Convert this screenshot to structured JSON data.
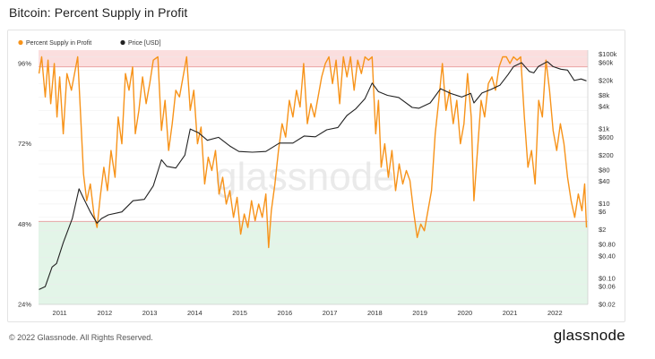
{
  "title": "Bitcoin: Percent Supply in Profit",
  "footer": {
    "copyright": "© 2022 Glassnode. All Rights Reserved.",
    "brand": "glassnode"
  },
  "watermark": "glassnode",
  "colors": {
    "profit_series": "#f7931a",
    "price_series": "#222222",
    "upper_band": "#fbdede",
    "lower_band": "#e3f5e8",
    "band_line": "#e89a9a"
  },
  "chart_data": {
    "type": "line",
    "title": "Bitcoin: Percent Supply in Profit",
    "legend_position": "top-left",
    "grid": true,
    "x_ticks": [
      "2011",
      "2012",
      "2013",
      "2014",
      "2015",
      "2016",
      "2017",
      "2018",
      "2019",
      "2020",
      "2021",
      "2022"
    ],
    "x_range": [
      2010.55,
      2022.75
    ],
    "y_left": {
      "ticks": [
        "96%",
        "72%",
        "48%",
        "24%"
      ],
      "range_percent": [
        24,
        100
      ],
      "scale": "linear"
    },
    "y_right": {
      "ticks": [
        "$100k",
        "$60k",
        "$20k",
        "$8k",
        "$4k",
        "$1k",
        "$600",
        "$200",
        "$80",
        "$40",
        "$10",
        "$6",
        "$2",
        "$0.80",
        "$0.40",
        "$0.10",
        "$0.06",
        "$0.02"
      ],
      "range_usd": [
        0.02,
        130000
      ],
      "scale": "log"
    },
    "bands": [
      {
        "from_percent": 95,
        "to_percent": 100,
        "color": "#fbdede"
      },
      {
        "from_percent": 24,
        "to_percent": 48.8,
        "color": "#e3f5e8"
      }
    ],
    "series": [
      {
        "name": "Percent Supply in Profit",
        "axis": "left",
        "unit": "%",
        "points": [
          [
            2010.56,
            93
          ],
          [
            2010.62,
            98
          ],
          [
            2010.7,
            86
          ],
          [
            2010.76,
            97
          ],
          [
            2010.82,
            84
          ],
          [
            2010.9,
            96
          ],
          [
            2010.96,
            80
          ],
          [
            2011.02,
            92
          ],
          [
            2011.1,
            75
          ],
          [
            2011.18,
            93
          ],
          [
            2011.28,
            88
          ],
          [
            2011.42,
            98
          ],
          [
            2011.48,
            82
          ],
          [
            2011.55,
            63
          ],
          [
            2011.62,
            55
          ],
          [
            2011.7,
            60
          ],
          [
            2011.78,
            51
          ],
          [
            2011.85,
            47
          ],
          [
            2011.92,
            56
          ],
          [
            2012.0,
            65
          ],
          [
            2012.08,
            58
          ],
          [
            2012.16,
            70
          ],
          [
            2012.25,
            62
          ],
          [
            2012.32,
            80
          ],
          [
            2012.4,
            72
          ],
          [
            2012.48,
            93
          ],
          [
            2012.56,
            88
          ],
          [
            2012.64,
            95
          ],
          [
            2012.7,
            75
          ],
          [
            2012.78,
            82
          ],
          [
            2012.86,
            92
          ],
          [
            2012.94,
            84
          ],
          [
            2013.02,
            90
          ],
          [
            2013.1,
            97
          ],
          [
            2013.2,
            98
          ],
          [
            2013.28,
            76
          ],
          [
            2013.36,
            85
          ],
          [
            2013.44,
            70
          ],
          [
            2013.52,
            78
          ],
          [
            2013.6,
            88
          ],
          [
            2013.68,
            86
          ],
          [
            2013.76,
            92
          ],
          [
            2013.84,
            98
          ],
          [
            2013.92,
            82
          ],
          [
            2014.0,
            88
          ],
          [
            2014.08,
            72
          ],
          [
            2014.16,
            77
          ],
          [
            2014.24,
            60
          ],
          [
            2014.32,
            68
          ],
          [
            2014.4,
            64
          ],
          [
            2014.48,
            70
          ],
          [
            2014.56,
            57
          ],
          [
            2014.64,
            62
          ],
          [
            2014.72,
            54
          ],
          [
            2014.8,
            58
          ],
          [
            2014.88,
            50
          ],
          [
            2014.96,
            56
          ],
          [
            2015.04,
            45
          ],
          [
            2015.12,
            51
          ],
          [
            2015.2,
            47
          ],
          [
            2015.28,
            55
          ],
          [
            2015.36,
            49
          ],
          [
            2015.44,
            54
          ],
          [
            2015.52,
            50
          ],
          [
            2015.6,
            57
          ],
          [
            2015.66,
            41
          ],
          [
            2015.72,
            52
          ],
          [
            2015.8,
            60
          ],
          [
            2015.88,
            70
          ],
          [
            2015.96,
            78
          ],
          [
            2016.04,
            74
          ],
          [
            2016.12,
            85
          ],
          [
            2016.2,
            80
          ],
          [
            2016.28,
            88
          ],
          [
            2016.36,
            83
          ],
          [
            2016.44,
            96
          ],
          [
            2016.52,
            78
          ],
          [
            2016.6,
            84
          ],
          [
            2016.68,
            80
          ],
          [
            2016.76,
            86
          ],
          [
            2016.84,
            92
          ],
          [
            2016.92,
            96
          ],
          [
            2017.0,
            98
          ],
          [
            2017.08,
            90
          ],
          [
            2017.16,
            97
          ],
          [
            2017.24,
            84
          ],
          [
            2017.32,
            98
          ],
          [
            2017.4,
            92
          ],
          [
            2017.48,
            98
          ],
          [
            2017.56,
            88
          ],
          [
            2017.64,
            97
          ],
          [
            2017.72,
            93
          ],
          [
            2017.8,
            98
          ],
          [
            2017.88,
            97
          ],
          [
            2017.96,
            98
          ],
          [
            2018.04,
            75
          ],
          [
            2018.1,
            85
          ],
          [
            2018.16,
            65
          ],
          [
            2018.24,
            72
          ],
          [
            2018.32,
            62
          ],
          [
            2018.4,
            70
          ],
          [
            2018.48,
            58
          ],
          [
            2018.56,
            66
          ],
          [
            2018.64,
            60
          ],
          [
            2018.72,
            64
          ],
          [
            2018.8,
            61
          ],
          [
            2018.88,
            52
          ],
          [
            2018.96,
            44
          ],
          [
            2019.04,
            48
          ],
          [
            2019.12,
            46
          ],
          [
            2019.2,
            52
          ],
          [
            2019.28,
            58
          ],
          [
            2019.36,
            75
          ],
          [
            2019.44,
            85
          ],
          [
            2019.52,
            96
          ],
          [
            2019.6,
            82
          ],
          [
            2019.68,
            88
          ],
          [
            2019.76,
            78
          ],
          [
            2019.84,
            85
          ],
          [
            2019.92,
            72
          ],
          [
            2020.0,
            78
          ],
          [
            2020.08,
            93
          ],
          [
            2020.16,
            80
          ],
          [
            2020.22,
            55
          ],
          [
            2020.3,
            70
          ],
          [
            2020.38,
            85
          ],
          [
            2020.46,
            80
          ],
          [
            2020.54,
            90
          ],
          [
            2020.62,
            92
          ],
          [
            2020.7,
            88
          ],
          [
            2020.78,
            95
          ],
          [
            2020.86,
            98
          ],
          [
            2020.94,
            98
          ],
          [
            2021.02,
            96
          ],
          [
            2021.1,
            98
          ],
          [
            2021.18,
            97
          ],
          [
            2021.26,
            98
          ],
          [
            2021.34,
            80
          ],
          [
            2021.42,
            65
          ],
          [
            2021.5,
            70
          ],
          [
            2021.58,
            60
          ],
          [
            2021.66,
            85
          ],
          [
            2021.74,
            80
          ],
          [
            2021.82,
            97
          ],
          [
            2021.9,
            88
          ],
          [
            2021.98,
            76
          ],
          [
            2022.06,
            70
          ],
          [
            2022.14,
            78
          ],
          [
            2022.22,
            72
          ],
          [
            2022.3,
            62
          ],
          [
            2022.38,
            55
          ],
          [
            2022.46,
            50
          ],
          [
            2022.54,
            57
          ],
          [
            2022.62,
            52
          ],
          [
            2022.68,
            60
          ],
          [
            2022.72,
            47
          ]
        ]
      },
      {
        "name": "Price [USD]",
        "axis": "right",
        "unit": "USD",
        "points": [
          [
            2010.56,
            0.05
          ],
          [
            2010.7,
            0.06
          ],
          [
            2010.85,
            0.2
          ],
          [
            2010.95,
            0.25
          ],
          [
            2011.1,
            0.9
          ],
          [
            2011.3,
            4
          ],
          [
            2011.45,
            25
          ],
          [
            2011.55,
            14
          ],
          [
            2011.7,
            6
          ],
          [
            2011.85,
            3
          ],
          [
            2011.95,
            4
          ],
          [
            2012.1,
            5
          ],
          [
            2012.4,
            6
          ],
          [
            2012.65,
            12
          ],
          [
            2012.9,
            13
          ],
          [
            2013.1,
            30
          ],
          [
            2013.28,
            150
          ],
          [
            2013.4,
            100
          ],
          [
            2013.6,
            90
          ],
          [
            2013.8,
            200
          ],
          [
            2013.92,
            1000
          ],
          [
            2014.1,
            800
          ],
          [
            2014.3,
            500
          ],
          [
            2014.55,
            600
          ],
          [
            2014.8,
            350
          ],
          [
            2015.0,
            250
          ],
          [
            2015.3,
            240
          ],
          [
            2015.6,
            250
          ],
          [
            2015.9,
            420
          ],
          [
            2016.2,
            420
          ],
          [
            2016.45,
            650
          ],
          [
            2016.7,
            620
          ],
          [
            2016.95,
            950
          ],
          [
            2017.2,
            1100
          ],
          [
            2017.4,
            2300
          ],
          [
            2017.6,
            3500
          ],
          [
            2017.8,
            6500
          ],
          [
            2017.96,
            17000
          ],
          [
            2018.1,
            10000
          ],
          [
            2018.3,
            8000
          ],
          [
            2018.55,
            7000
          ],
          [
            2018.85,
            3800
          ],
          [
            2019.0,
            3600
          ],
          [
            2019.25,
            5000
          ],
          [
            2019.48,
            12000
          ],
          [
            2019.7,
            9000
          ],
          [
            2019.95,
            7200
          ],
          [
            2020.15,
            9000
          ],
          [
            2020.22,
            5000
          ],
          [
            2020.4,
            9200
          ],
          [
            2020.6,
            11500
          ],
          [
            2020.8,
            15000
          ],
          [
            2020.98,
            29000
          ],
          [
            2021.1,
            47000
          ],
          [
            2021.28,
            60000
          ],
          [
            2021.45,
            35000
          ],
          [
            2021.55,
            32000
          ],
          [
            2021.65,
            47000
          ],
          [
            2021.85,
            64000
          ],
          [
            2021.98,
            47000
          ],
          [
            2022.15,
            40000
          ],
          [
            2022.3,
            38000
          ],
          [
            2022.45,
            20000
          ],
          [
            2022.6,
            22000
          ],
          [
            2022.72,
            19500
          ]
        ]
      }
    ]
  }
}
